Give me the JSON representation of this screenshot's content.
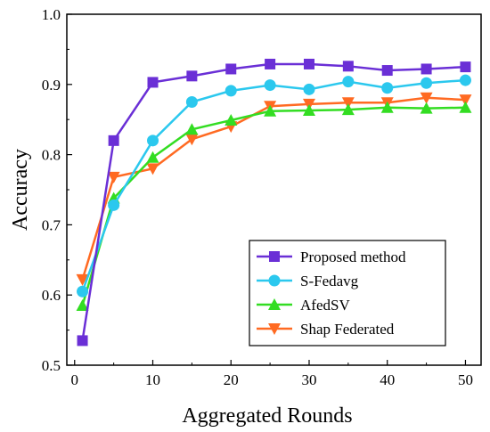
{
  "chart_data": {
    "type": "line",
    "title": "",
    "xlabel": "Aggregated Rounds",
    "ylabel": "Accuracy",
    "xlim": [
      -1,
      52
    ],
    "ylim": [
      0.5,
      1.0
    ],
    "xticks": [
      "0",
      "10",
      "20",
      "30",
      "40",
      "50"
    ],
    "yticks": [
      "0.5",
      "0.6",
      "0.7",
      "0.8",
      "0.9",
      "1.0"
    ],
    "grid": false,
    "legend_position": "bottom-right",
    "x": [
      1,
      5,
      10,
      15,
      20,
      25,
      30,
      35,
      40,
      45,
      50
    ],
    "series": [
      {
        "name": "Proposed method",
        "marker": "square",
        "color": "#6a2fd6",
        "values": [
          0.535,
          0.82,
          0.903,
          0.912,
          0.922,
          0.929,
          0.929,
          0.926,
          0.92,
          0.922,
          0.925
        ]
      },
      {
        "name": "S-Fedavg",
        "marker": "circle",
        "color": "#2bc8ee",
        "values": [
          0.605,
          0.728,
          0.82,
          0.875,
          0.891,
          0.899,
          0.893,
          0.904,
          0.895,
          0.902,
          0.906
        ]
      },
      {
        "name": "AfedSV",
        "marker": "triangle-up",
        "color": "#33dd22",
        "values": [
          0.585,
          0.738,
          0.796,
          0.836,
          0.849,
          0.862,
          0.863,
          0.864,
          0.867,
          0.866,
          0.867
        ]
      },
      {
        "name": "Shap Federated",
        "marker": "triangle-down",
        "color": "#ff6a22",
        "values": [
          0.622,
          0.768,
          0.78,
          0.822,
          0.84,
          0.869,
          0.872,
          0.874,
          0.874,
          0.881,
          0.878
        ]
      }
    ]
  }
}
